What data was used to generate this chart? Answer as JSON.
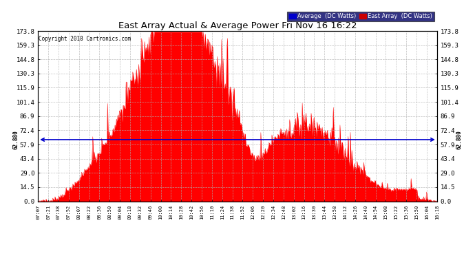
{
  "title": "East Array Actual & Average Power Fri Nov 16 16:22",
  "copyright": "Copyright 2018 Cartronics.com",
  "average_value": 62.88,
  "average_label": "62.880",
  "ylim": [
    0,
    173.8
  ],
  "yticks": [
    0.0,
    14.5,
    29.0,
    43.4,
    57.9,
    72.4,
    86.9,
    101.4,
    115.9,
    130.3,
    144.8,
    159.3,
    173.8
  ],
  "background_color": "#ffffff",
  "plot_bg_color": "#ffffff",
  "grid_color": "#b0b0b0",
  "fill_color": "#ff0000",
  "avg_line_color": "#0000cc",
  "x_tick_labels": [
    "07:07",
    "07:21",
    "07:38",
    "07:52",
    "08:07",
    "08:22",
    "08:36",
    "08:50",
    "09:04",
    "09:18",
    "09:32",
    "09:46",
    "10:00",
    "10:14",
    "10:28",
    "10:42",
    "10:56",
    "11:10",
    "11:24",
    "11:38",
    "11:52",
    "12:06",
    "12:20",
    "12:34",
    "12:48",
    "13:02",
    "13:16",
    "13:30",
    "13:44",
    "13:58",
    "14:12",
    "14:26",
    "14:40",
    "14:54",
    "15:08",
    "15:22",
    "15:36",
    "15:50",
    "16:04",
    "16:18"
  ],
  "n_points": 540,
  "seed": 7
}
